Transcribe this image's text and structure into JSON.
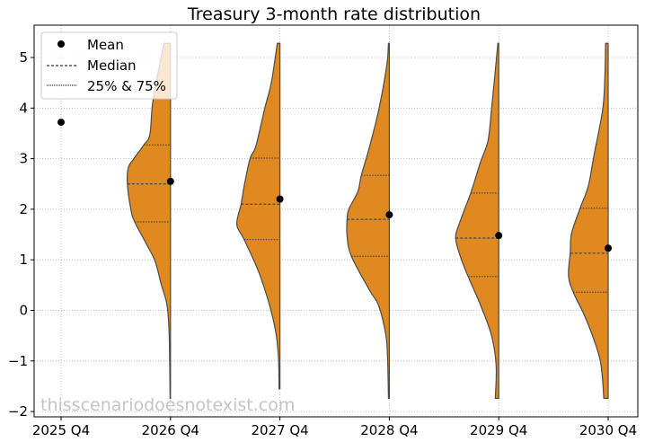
{
  "chart_data": {
    "type": "violin",
    "title": "Treasury 3-month rate distribution",
    "xlabel": "",
    "ylabel": "",
    "categories": [
      "2025 Q4",
      "2026 Q4",
      "2027 Q4",
      "2028 Q4",
      "2029 Q4",
      "2030 Q4"
    ],
    "ylim": [
      -2.1,
      5.6
    ],
    "yticks": [
      -2,
      -1,
      0,
      1,
      2,
      3,
      4,
      5
    ],
    "grid": true,
    "legend": {
      "placement": "top-left",
      "entries": [
        "Mean",
        "Median",
        "25% & 75%"
      ]
    },
    "fill_color": "#E08921",
    "outline_color": "#4a4a4a",
    "watermark": "thisscenariodoesnotexist.com",
    "series": [
      {
        "category": "2025 Q4",
        "mean": 3.72,
        "median": null,
        "q1": null,
        "q3": null,
        "density": []
      },
      {
        "category": "2026 Q4",
        "mean": 2.55,
        "median": 2.5,
        "q1": 1.75,
        "q3": 3.27,
        "density": [
          [
            5.28,
            0.15
          ],
          [
            4.6,
            0.31
          ],
          [
            4.06,
            0.42
          ],
          [
            3.47,
            0.48
          ],
          [
            3.27,
            0.62
          ],
          [
            3.0,
            0.85
          ],
          [
            2.82,
            0.98
          ],
          [
            2.5,
            1.0
          ],
          [
            2.0,
            0.92
          ],
          [
            1.75,
            0.83
          ],
          [
            1.3,
            0.55
          ],
          [
            0.98,
            0.36
          ],
          [
            0.5,
            0.21
          ],
          [
            0.1,
            0.08
          ],
          [
            -0.5,
            0.03
          ],
          [
            -1.74,
            0.01
          ]
        ]
      },
      {
        "category": "2027 Q4",
        "mean": 2.2,
        "median": 2.1,
        "q1": 1.4,
        "q3": 3.01,
        "density": [
          [
            5.28,
            0.06
          ],
          [
            4.5,
            0.2
          ],
          [
            4.0,
            0.35
          ],
          [
            3.24,
            0.56
          ],
          [
            3.01,
            0.69
          ],
          [
            2.5,
            0.82
          ],
          [
            2.1,
            0.9
          ],
          [
            1.7,
            1.0
          ],
          [
            1.4,
            0.83
          ],
          [
            0.69,
            0.46
          ],
          [
            -0.2,
            0.15
          ],
          [
            -0.85,
            0.04
          ],
          [
            -1.55,
            0.02
          ]
        ]
      },
      {
        "category": "2028 Q4",
        "mean": 1.89,
        "median": 1.8,
        "q1": 1.07,
        "q3": 2.67,
        "density": [
          [
            5.28,
            0.02
          ],
          [
            4.84,
            0.06
          ],
          [
            3.95,
            0.25
          ],
          [
            3.17,
            0.48
          ],
          [
            2.67,
            0.65
          ],
          [
            2.35,
            0.73
          ],
          [
            2.0,
            0.94
          ],
          [
            1.8,
            0.98
          ],
          [
            1.47,
            0.98
          ],
          [
            1.07,
            0.88
          ],
          [
            0.4,
            0.46
          ],
          [
            0.1,
            0.25
          ],
          [
            -0.49,
            0.08
          ],
          [
            -0.97,
            0.04
          ],
          [
            -1.74,
            0.02
          ]
        ]
      },
      {
        "category": "2029 Q4",
        "mean": 1.48,
        "median": 1.43,
        "q1": 0.67,
        "q3": 2.32,
        "density": [
          [
            5.28,
            0.02
          ],
          [
            3.95,
            0.17
          ],
          [
            3.35,
            0.25
          ],
          [
            2.94,
            0.42
          ],
          [
            2.32,
            0.65
          ],
          [
            1.75,
            0.9
          ],
          [
            1.43,
            1.0
          ],
          [
            1.04,
            0.88
          ],
          [
            0.67,
            0.71
          ],
          [
            0.1,
            0.42
          ],
          [
            -0.49,
            0.17
          ],
          [
            -1.09,
            0.06
          ],
          [
            -1.74,
            0.08
          ]
        ]
      },
      {
        "category": "2030 Q4",
        "mean": 1.23,
        "median": 1.13,
        "q1": 0.36,
        "q3": 2.02,
        "density": [
          [
            5.28,
            0.06
          ],
          [
            4.54,
            0.08
          ],
          [
            3.95,
            0.13
          ],
          [
            3.06,
            0.33
          ],
          [
            2.46,
            0.46
          ],
          [
            2.02,
            0.65
          ],
          [
            1.52,
            0.85
          ],
          [
            1.13,
            0.88
          ],
          [
            0.69,
            0.92
          ],
          [
            0.36,
            0.81
          ],
          [
            -0.2,
            0.5
          ],
          [
            -0.97,
            0.19
          ],
          [
            -1.74,
            0.1
          ]
        ]
      }
    ]
  }
}
